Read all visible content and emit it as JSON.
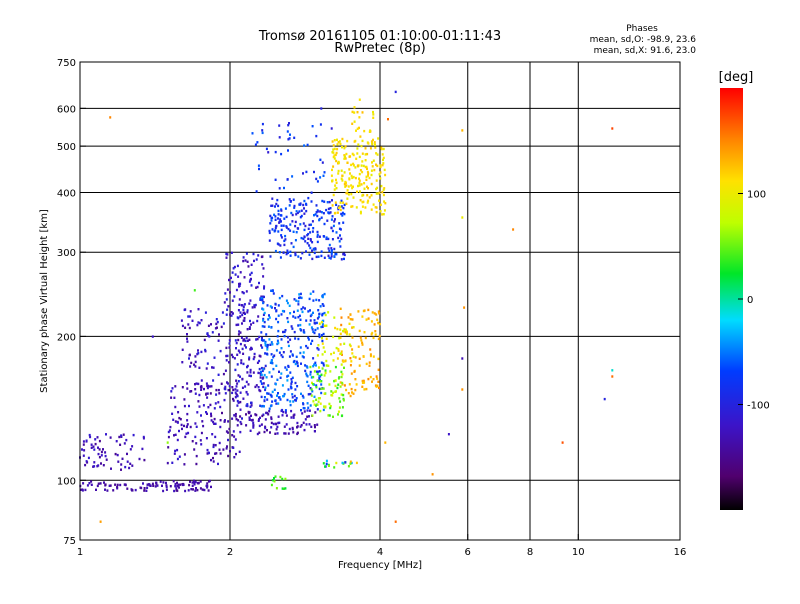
{
  "header": {
    "title_line1": "Tromsø 20161105 01:10:00-01:11:43",
    "title_line2": "RwPretec (8p)"
  },
  "stats": {
    "heading": "Phases",
    "line_o": "mean, sd,O: -98.9, 23.6",
    "line_x": "mean, sd,X:  91.6, 23.0"
  },
  "colorbar": {
    "unit": "[deg]",
    "ticks": [
      {
        "value": 100,
        "label": "100"
      },
      {
        "value": 0,
        "label": "0"
      },
      {
        "value": -100,
        "label": "-100"
      }
    ],
    "range": [
      -200,
      200
    ]
  },
  "chart_data": {
    "type": "scatter",
    "title": "Tromsø 20161105 01:10:00-01:11:43",
    "subtitle": "RwPretec (8p)",
    "xlabel": "Frequency [MHz]",
    "ylabel": "Stationary phase Virtual Height [km]",
    "xscale": "log",
    "yscale": "log",
    "xlim": [
      1,
      16
    ],
    "ylim": [
      75,
      750
    ],
    "xticks": [
      {
        "value": 1,
        "label": "1"
      },
      {
        "value": 2,
        "label": "2"
      },
      {
        "value": 4,
        "label": "4"
      },
      {
        "value": 6,
        "label": "6"
      },
      {
        "value": 8,
        "label": "8"
      },
      {
        "value": 10,
        "label": "10"
      },
      {
        "value": 16,
        "label": "16"
      }
    ],
    "xgrid": [
      2,
      4,
      6,
      8,
      10
    ],
    "yticks": [
      {
        "value": 75,
        "label": "75"
      },
      {
        "value": 100,
        "label": "100"
      },
      {
        "value": 200,
        "label": "200"
      },
      {
        "value": 300,
        "label": "300"
      },
      {
        "value": 400,
        "label": "400"
      },
      {
        "value": 500,
        "label": "500"
      },
      {
        "value": 600,
        "label": "600"
      },
      {
        "value": 750,
        "label": "750"
      }
    ],
    "ygrid": [
      100,
      200,
      300,
      400,
      500,
      600
    ],
    "grid": true,
    "color_variable": "phase [deg]",
    "clusters": [
      {
        "f": [
          1.0,
          1.85
        ],
        "h": [
          95,
          100
        ],
        "phase": [
          -150,
          -125
        ],
        "n": 110
      },
      {
        "f": [
          1.0,
          1.35
        ],
        "h": [
          105,
          125
        ],
        "phase": [
          -150,
          -110
        ],
        "n": 70
      },
      {
        "f": [
          1.5,
          2.1
        ],
        "h": [
          108,
          160
        ],
        "phase": [
          -150,
          -110
        ],
        "n": 170
      },
      {
        "f": [
          1.6,
          2.2
        ],
        "h": [
          150,
          230
        ],
        "phase": [
          -145,
          -100
        ],
        "n": 110
      },
      {
        "f": [
          1.95,
          2.35
        ],
        "h": [
          130,
          300
        ],
        "phase": [
          -140,
          -95
        ],
        "n": 200
      },
      {
        "f": [
          2.15,
          3.0
        ],
        "h": [
          125,
          140
        ],
        "phase": [
          -150,
          -115
        ],
        "n": 90
      },
      {
        "f": [
          2.3,
          3.1
        ],
        "h": [
          140,
          250
        ],
        "phase": [
          -100,
          -35
        ],
        "n": 340
      },
      {
        "f": [
          2.4,
          3.4
        ],
        "h": [
          290,
          390
        ],
        "phase": [
          -110,
          -55
        ],
        "n": 240
      },
      {
        "f": [
          2.2,
          3.1
        ],
        "h": [
          390,
          560
        ],
        "phase": [
          -110,
          -55
        ],
        "n": 45
      },
      {
        "f": [
          3.2,
          4.1
        ],
        "h": [
          360,
          520
        ],
        "phase": [
          95,
          125
        ],
        "n": 220
      },
      {
        "f": [
          3.5,
          3.9
        ],
        "h": [
          520,
          640
        ],
        "phase": [
          100,
          130
        ],
        "n": 20
      },
      {
        "f": [
          3.3,
          4.0
        ],
        "h": [
          150,
          230
        ],
        "phase": [
          115,
          150
        ],
        "n": 110
      },
      {
        "f": [
          2.9,
          3.4
        ],
        "h": [
          135,
          175
        ],
        "phase": [
          30,
          95
        ],
        "n": 80
      },
      {
        "f": [
          3.0,
          3.6
        ],
        "h": [
          175,
          225
        ],
        "phase": [
          75,
          120
        ],
        "n": 40
      },
      {
        "f": [
          2.4,
          2.6
        ],
        "h": [
          96,
          102
        ],
        "phase": [
          20,
          60
        ],
        "n": 12
      },
      {
        "f": [
          3.05,
          3.6
        ],
        "h": [
          106,
          110
        ],
        "phase": [
          -110,
          145
        ],
        "n": 18
      }
    ],
    "outliers": [
      {
        "f": 1.15,
        "h": 575,
        "phase": 150
      },
      {
        "f": 1.1,
        "h": 82,
        "phase": 140
      },
      {
        "f": 4.3,
        "h": 82,
        "phase": 160
      },
      {
        "f": 5.1,
        "h": 103,
        "phase": 145
      },
      {
        "f": 5.5,
        "h": 125,
        "phase": -120
      },
      {
        "f": 5.85,
        "h": 540,
        "phase": 130
      },
      {
        "f": 5.85,
        "h": 355,
        "phase": 100
      },
      {
        "f": 5.9,
        "h": 230,
        "phase": 145
      },
      {
        "f": 5.85,
        "h": 180,
        "phase": -130
      },
      {
        "f": 5.85,
        "h": 155,
        "phase": 145
      },
      {
        "f": 7.4,
        "h": 335,
        "phase": 150
      },
      {
        "f": 9.3,
        "h": 120,
        "phase": 170
      },
      {
        "f": 11.3,
        "h": 148,
        "phase": -100
      },
      {
        "f": 11.7,
        "h": 545,
        "phase": 175
      },
      {
        "f": 11.7,
        "h": 165,
        "phase": 160
      },
      {
        "f": 11.7,
        "h": 170,
        "phase": -10
      },
      {
        "f": 4.3,
        "h": 650,
        "phase": -100
      },
      {
        "f": 4.15,
        "h": 570,
        "phase": 160
      },
      {
        "f": 3.05,
        "h": 600,
        "phase": -100
      },
      {
        "f": 3.2,
        "h": 545,
        "phase": -110
      },
      {
        "f": 1.4,
        "h": 200,
        "phase": -120
      },
      {
        "f": 1.7,
        "h": 250,
        "phase": 40
      },
      {
        "f": 1.5,
        "h": 120,
        "phase": 60
      },
      {
        "f": 4.1,
        "h": 120,
        "phase": 130
      }
    ]
  }
}
